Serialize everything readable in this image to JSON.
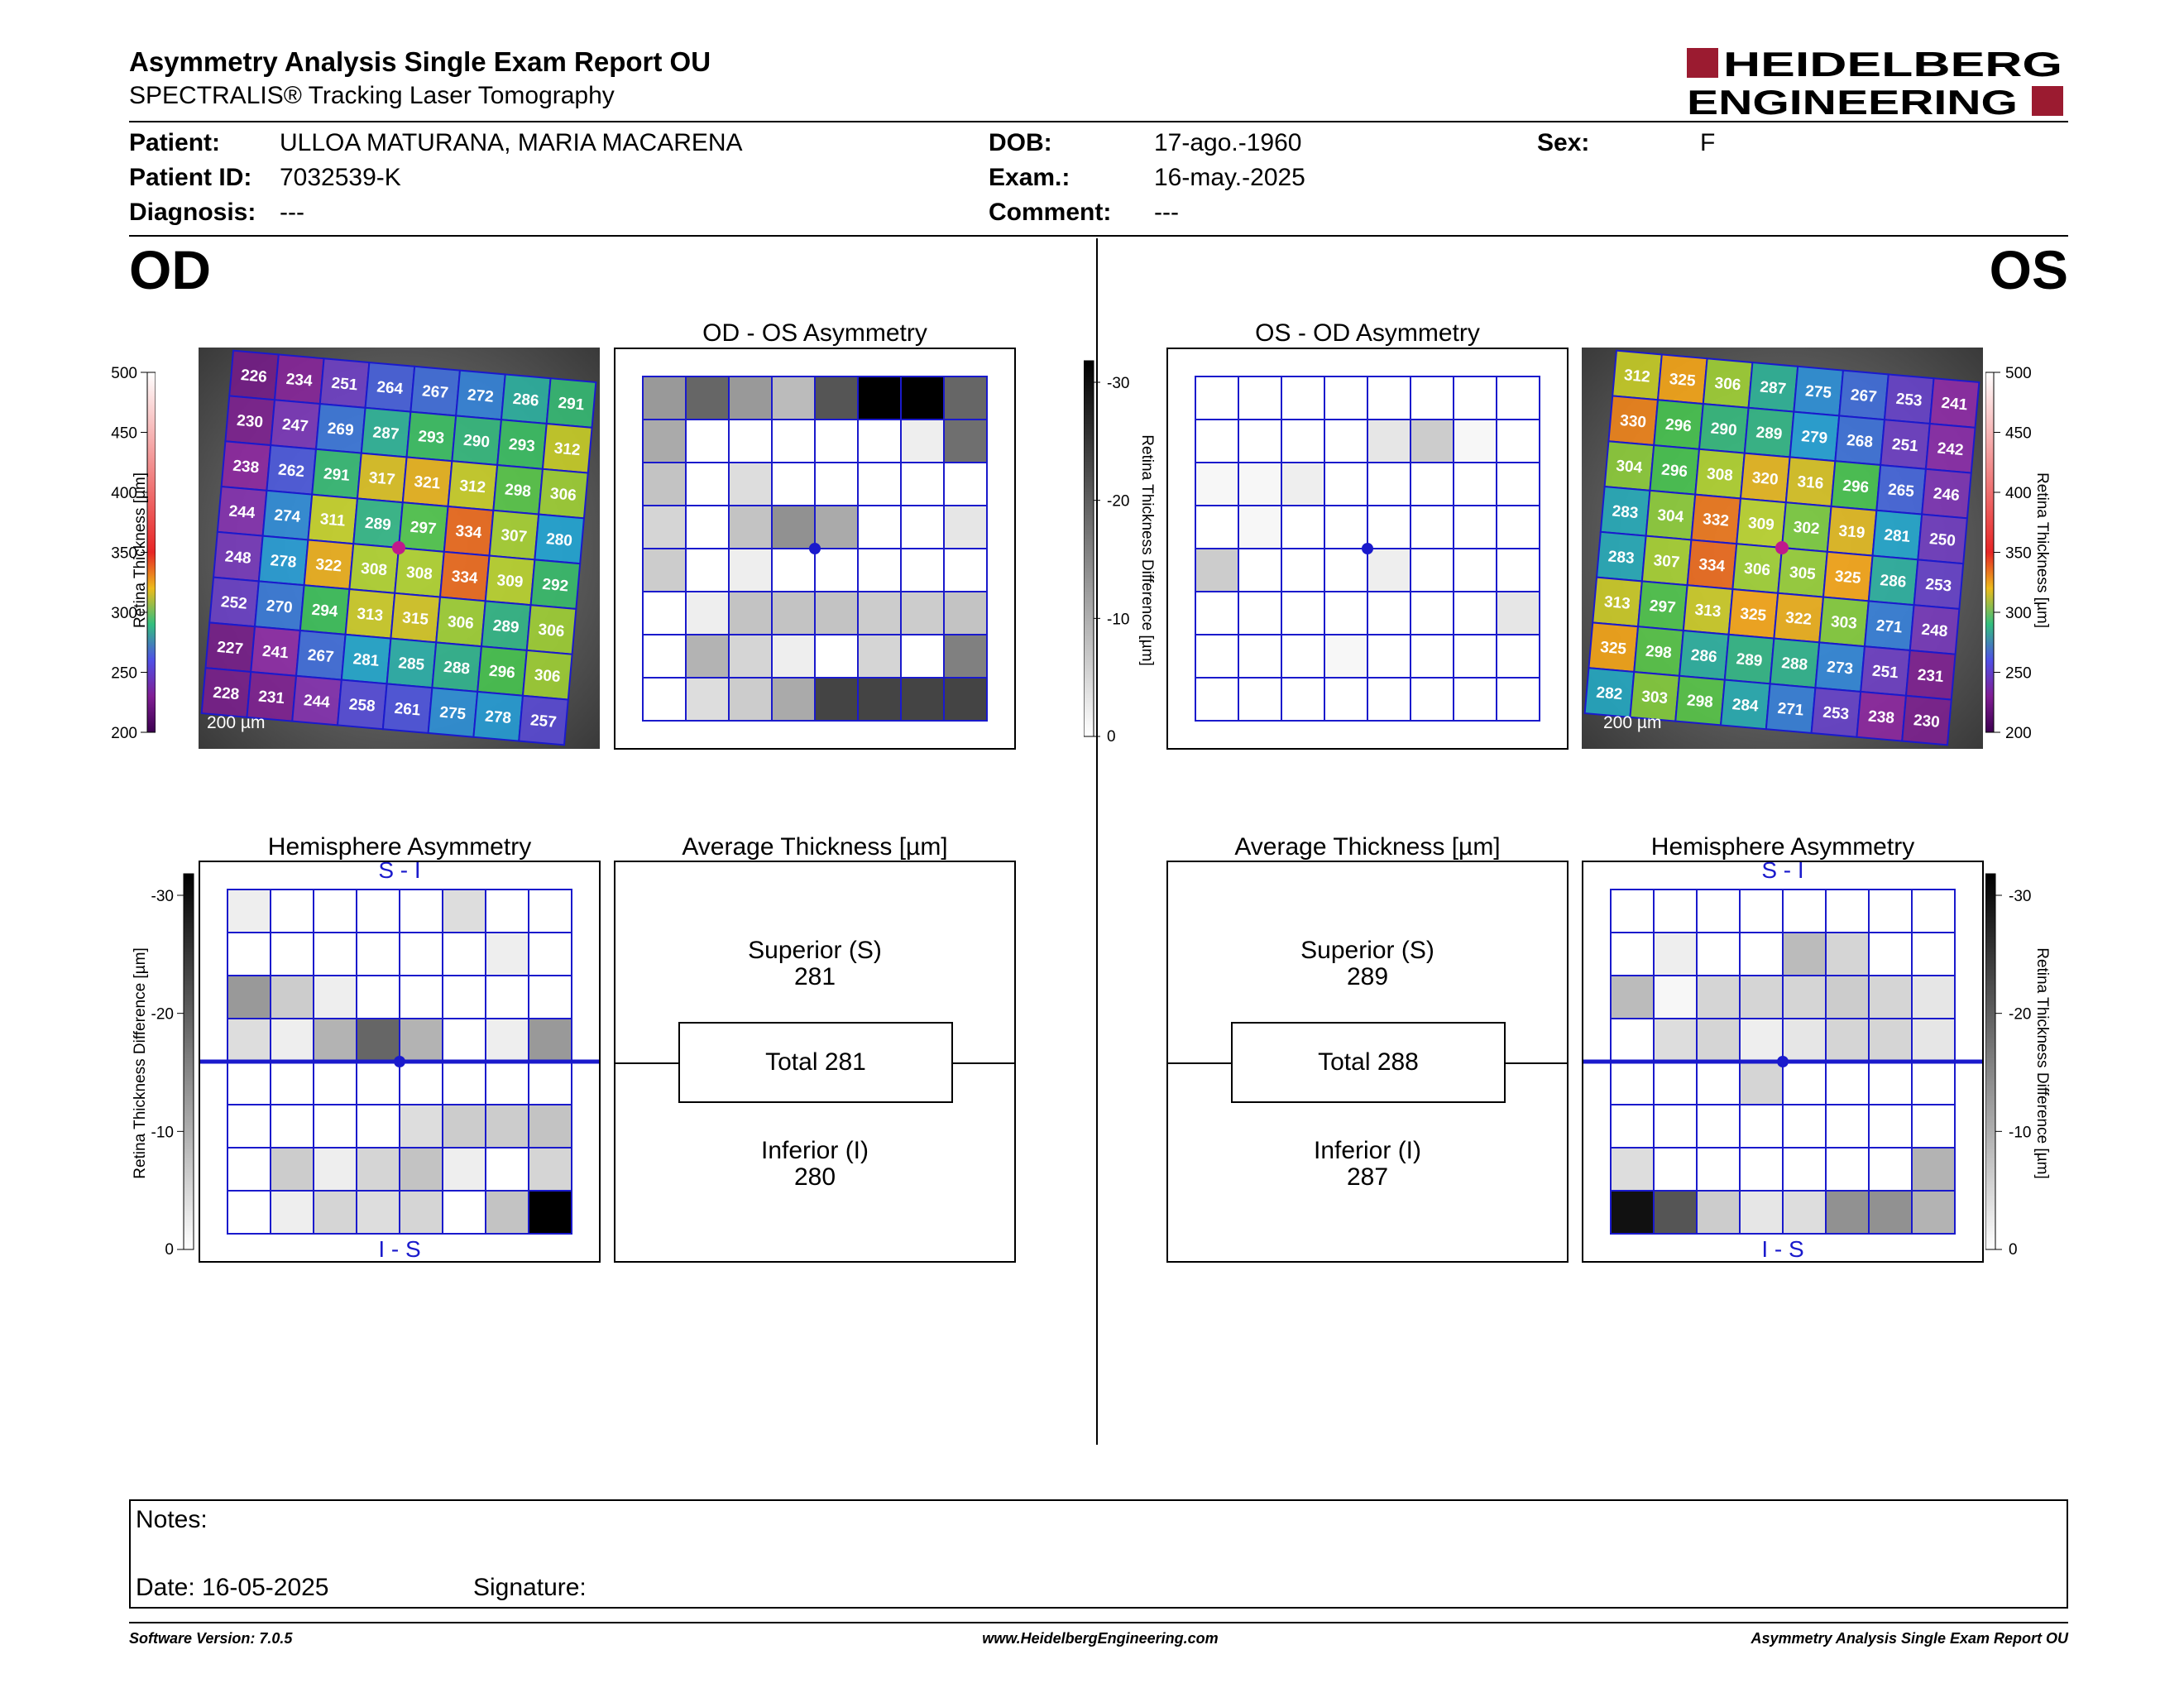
{
  "header": {
    "title": "Asymmetry Analysis Single Exam Report OU",
    "subtitle": "SPECTRALIS® Tracking Laser Tomography",
    "logo_line1": "HEIDELBERG",
    "logo_line2": "ENGINEERING",
    "brand_color": "#9b1b30"
  },
  "patient": {
    "patient_label": "Patient:",
    "patient_value": "ULLOA MATURANA, MARIA MACARENA",
    "id_label": "Patient ID:",
    "id_value": "7032539-K",
    "diagnosis_label": "Diagnosis:",
    "diagnosis_value": "---",
    "dob_label": "DOB:",
    "dob_value": "17-ago.-1960",
    "exam_label": "Exam.:",
    "exam_value": "16-may.-2025",
    "comment_label": "Comment:",
    "comment_value": "---",
    "sex_label": "Sex:",
    "sex_value": "F"
  },
  "od": {
    "label": "OD",
    "thickness_axis": {
      "label": "Retina  Thickness [µm]",
      "ticks": [
        "500",
        "450",
        "400",
        "350",
        "300",
        "250",
        "200"
      ]
    },
    "scale_text": "200 µm",
    "thickness_grid": [
      [
        226,
        234,
        251,
        264,
        267,
        272,
        286,
        291
      ],
      [
        230,
        247,
        269,
        287,
        293,
        290,
        293,
        312
      ],
      [
        238,
        262,
        291,
        317,
        321,
        312,
        298,
        306
      ],
      [
        244,
        274,
        311,
        289,
        297,
        334,
        307,
        280
      ],
      [
        248,
        278,
        322,
        308,
        308,
        334,
        309,
        292
      ],
      [
        252,
        270,
        294,
        313,
        315,
        306,
        289,
        306
      ],
      [
        227,
        241,
        267,
        281,
        285,
        288,
        296,
        306
      ],
      [
        228,
        231,
        244,
        258,
        261,
        275,
        278,
        257
      ]
    ],
    "asymmetry_title": "OD - OS Asymmetry",
    "asymmetry_grid": [
      [
        12,
        18,
        12,
        8,
        20,
        30,
        30,
        18
      ],
      [
        10,
        0,
        0,
        0,
        0,
        0,
        2,
        17
      ],
      [
        7,
        0,
        4,
        0,
        0,
        0,
        0,
        0
      ],
      [
        5,
        0,
        7,
        13,
        10,
        0,
        0,
        3
      ],
      [
        6,
        0,
        2,
        0,
        0,
        0,
        0,
        0
      ],
      [
        0,
        2,
        7,
        7,
        7,
        6,
        6,
        7
      ],
      [
        0,
        9,
        5,
        2,
        0,
        5,
        0,
        15
      ],
      [
        0,
        4,
        6,
        10,
        22,
        22,
        22,
        22
      ]
    ],
    "hemi_title": "Hemisphere Asymmetry",
    "hemi_top": "S - I",
    "hemi_bottom": "I - S",
    "hemi_grid": [
      [
        2,
        0,
        0,
        0,
        0,
        4,
        0,
        0
      ],
      [
        0,
        0,
        0,
        0,
        0,
        0,
        2,
        0
      ],
      [
        12,
        6,
        2,
        0,
        0,
        0,
        0,
        0
      ],
      [
        4,
        2,
        9,
        18,
        9,
        0,
        2,
        12
      ],
      [
        0,
        0,
        0,
        0,
        0,
        0,
        0,
        0
      ],
      [
        0,
        0,
        0,
        0,
        4,
        6,
        6,
        7
      ],
      [
        0,
        6,
        2,
        5,
        7,
        2,
        0,
        5
      ],
      [
        0,
        2,
        5,
        4,
        5,
        0,
        7,
        30
      ]
    ],
    "avg_title": "Average Thickness [µm]",
    "superior_label": "Superior (S)",
    "superior_value": "281",
    "total_text": "Total 281",
    "inferior_label": "Inferior (I)",
    "inferior_value": "280"
  },
  "diff_axis": {
    "label": "Retina Thickness Difference [µm]",
    "ticks": [
      "-30",
      "-20",
      "-10",
      "0"
    ]
  },
  "os": {
    "label": "OS",
    "thickness_axis": {
      "label": "Retina  Thickness [µm]",
      "ticks": [
        "500",
        "450",
        "400",
        "350",
        "300",
        "250",
        "200"
      ]
    },
    "scale_text": "200 µm",
    "thickness_grid": [
      [
        312,
        325,
        306,
        287,
        275,
        267,
        253,
        241
      ],
      [
        330,
        296,
        290,
        289,
        279,
        268,
        251,
        242
      ],
      [
        304,
        296,
        308,
        320,
        316,
        296,
        265,
        246
      ],
      [
        283,
        304,
        332,
        309,
        302,
        319,
        281,
        250
      ],
      [
        283,
        307,
        334,
        306,
        305,
        325,
        286,
        253
      ],
      [
        313,
        297,
        313,
        325,
        322,
        303,
        271,
        248
      ],
      [
        325,
        298,
        286,
        289,
        288,
        273,
        251,
        231
      ],
      [
        282,
        303,
        298,
        284,
        271,
        253,
        238,
        230
      ]
    ],
    "asymmetry_title": "OS - OD Asymmetry",
    "asymmetry_grid": [
      [
        0,
        0,
        0,
        0,
        0,
        0,
        0,
        0
      ],
      [
        0,
        0,
        0,
        0,
        3,
        6,
        1,
        0
      ],
      [
        1,
        1,
        2,
        0,
        0,
        0,
        0,
        0
      ],
      [
        0,
        1,
        0,
        0,
        0,
        0,
        0,
        0
      ],
      [
        6,
        0,
        0,
        0,
        2,
        0,
        0,
        0
      ],
      [
        0,
        0,
        0,
        0,
        0,
        0,
        0,
        3
      ],
      [
        0,
        0,
        0,
        1,
        0,
        0,
        0,
        0
      ],
      [
        0,
        0,
        0,
        0,
        0,
        0,
        0,
        0
      ]
    ],
    "hemi_title": "Hemisphere Asymmetry",
    "hemi_top": "S - I",
    "hemi_bottom": "I - S",
    "hemi_grid": [
      [
        0,
        0,
        0,
        0,
        0,
        0,
        0,
        0
      ],
      [
        0,
        2,
        0,
        0,
        8,
        5,
        0,
        0
      ],
      [
        8,
        1,
        5,
        5,
        5,
        6,
        5,
        3
      ],
      [
        0,
        4,
        5,
        2,
        3,
        5,
        5,
        3
      ],
      [
        0,
        0,
        0,
        5,
        0,
        0,
        0,
        0
      ],
      [
        0,
        0,
        0,
        0,
        0,
        0,
        0,
        0
      ],
      [
        4,
        0,
        0,
        0,
        0,
        0,
        0,
        9
      ],
      [
        28,
        20,
        6,
        3,
        4,
        13,
        13,
        9
      ]
    ],
    "avg_title": "Average Thickness [µm]",
    "superior_label": "Superior (S)",
    "superior_value": "289",
    "total_text": "Total 288",
    "inferior_label": "Inferior (I)",
    "inferior_value": "287"
  },
  "notes": {
    "notes_label": "Notes:",
    "date_label": "Date: 16-05-2025",
    "signature_label": "Signature:"
  },
  "footer": {
    "software": "Software Version: 7.0.5",
    "website": "www.HeidelbergEngineering.com",
    "report": "Asymmetry Analysis Single Exam Report OU"
  }
}
